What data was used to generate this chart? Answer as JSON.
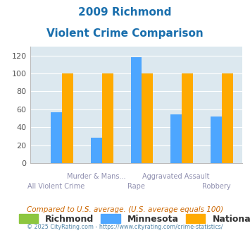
{
  "title_line1": "2009 Richmond",
  "title_line2": "Violent Crime Comparison",
  "categories": [
    "All Violent Crime",
    "Murder & Mans...",
    "Rape",
    "Aggravated Assault",
    "Robbery"
  ],
  "top_labels": [
    "",
    "Murder & Mans...",
    "",
    "Aggravated Assault",
    ""
  ],
  "bot_labels": [
    "All Violent Crime",
    "",
    "Rape",
    "",
    "Robbery"
  ],
  "richmond_values": [
    0,
    0,
    0,
    0,
    0
  ],
  "minnesota_values": [
    57,
    28,
    118,
    54,
    52
  ],
  "national_values": [
    100,
    100,
    100,
    100,
    100
  ],
  "richmond_color": "#8dc63f",
  "minnesota_color": "#4da6ff",
  "national_color": "#ffaa00",
  "ylim": [
    0,
    130
  ],
  "yticks": [
    0,
    20,
    40,
    60,
    80,
    100,
    120
  ],
  "bar_width": 0.28,
  "background_color": "#dce8ef",
  "title_color": "#1a6fad",
  "legend_labels": [
    "Richmond",
    "Minnesota",
    "National"
  ],
  "footnote": "Compared to U.S. average. (U.S. average equals 100)",
  "copyright": "© 2025 CityRating.com - https://www.cityrating.com/crime-statistics/",
  "footnote_color": "#cc6600",
  "copyright_color": "#5588aa",
  "x_label_color": "#9090b0",
  "grid_color": "#ffffff"
}
